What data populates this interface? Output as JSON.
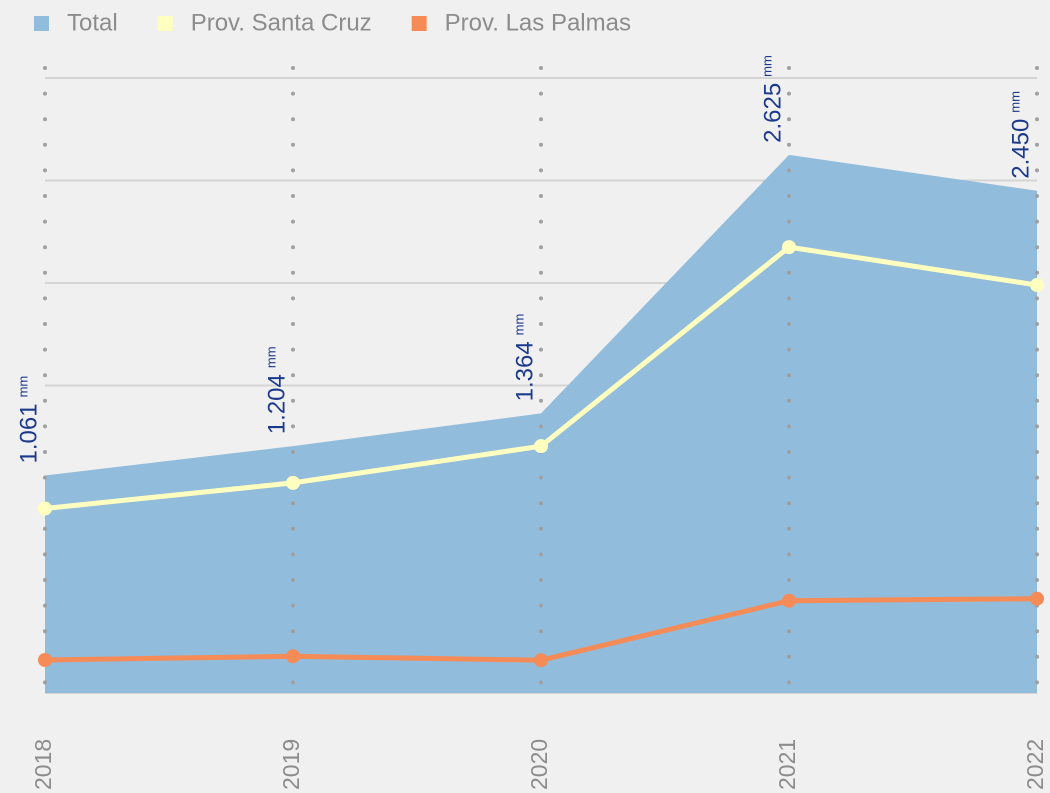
{
  "chart_data": {
    "type": "area-line",
    "categories": [
      "2018",
      "2019",
      "2020",
      "2021",
      "2022"
    ],
    "unit": "mm",
    "series": [
      {
        "name": "Total",
        "color": "#91bcdb",
        "kind": "area",
        "values": [
          1061,
          1204,
          1364,
          2625,
          2450
        ],
        "value_labels": [
          "1.061",
          "1.204",
          "1.364",
          "2.625",
          "2.450"
        ]
      },
      {
        "name": "Prov. Santa Cruz",
        "color": "#ffffc0",
        "kind": "line",
        "values": [
          900,
          1025,
          1204,
          2175,
          1990
        ]
      },
      {
        "name": "Prov. Las Palmas",
        "color": "#f58c57",
        "kind": "line",
        "values": [
          161,
          179,
          160,
          450,
          460
        ]
      }
    ],
    "ylim": [
      0,
      3000
    ],
    "yticks": [
      0,
      500,
      1000,
      1500,
      2000,
      2500,
      3000
    ],
    "grid": true
  }
}
